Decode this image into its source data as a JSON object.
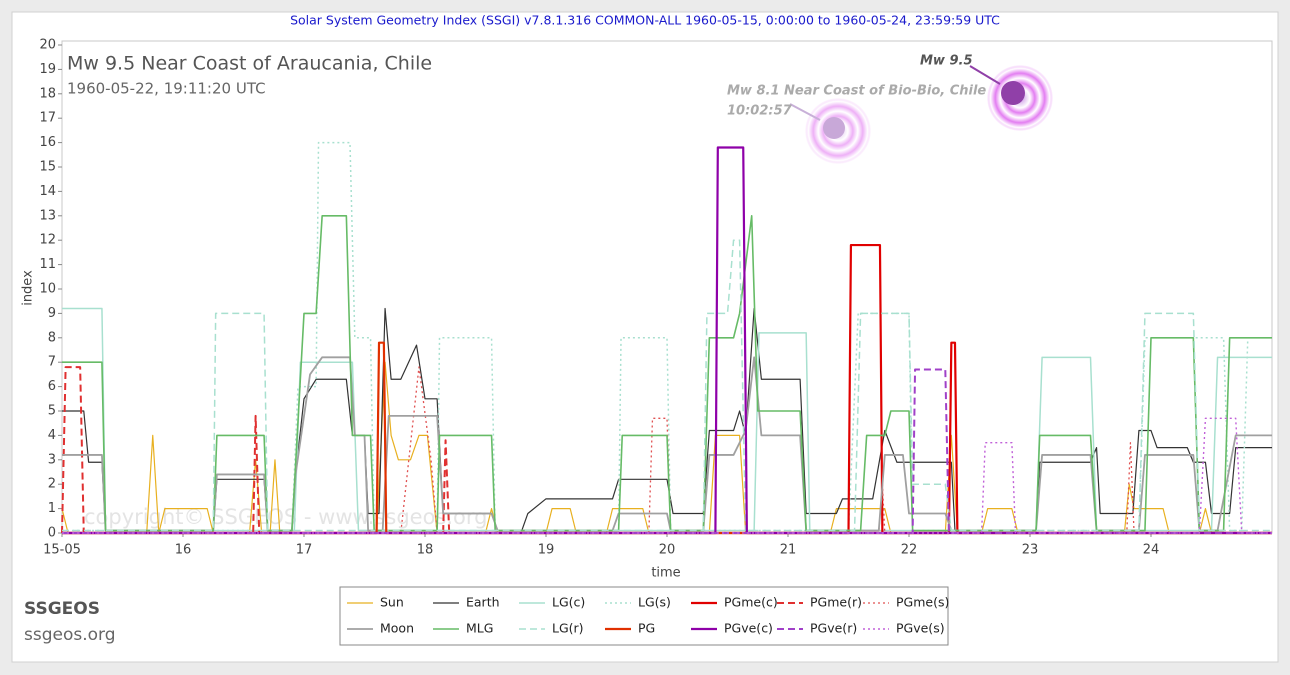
{
  "chart_data": {
    "type": "line",
    "title": "Solar System Geometry Index (SSGI) v7.8.1.316 COMMON-ALL 1960-05-15,  0:00:00 to 1960-05-24, 23:59:59 UTC",
    "event_title": "Mw 9.5 Near Coast of Araucania, Chile",
    "event_time": "1960-05-22, 19:11:20 UTC",
    "annotations": [
      "Mw 9.5",
      "Mw 8.1 Near Coast of Bio-Bio, Chile",
      "10:02:57"
    ],
    "watermark": "copyright© SSGEOS - www.ssgeos.org",
    "xlabel": "time",
    "ylabel": "index",
    "xlim": [
      15,
      25
    ],
    "xticks": [
      {
        "value": 15,
        "label": "15-05"
      },
      16,
      17,
      18,
      19,
      20,
      21,
      22,
      23,
      24
    ],
    "ylim": [
      0,
      20
    ],
    "yticks": [
      0,
      1,
      2,
      3,
      4,
      5,
      6,
      7,
      8,
      9,
      10,
      11,
      12,
      13,
      14,
      15,
      16,
      17,
      18,
      19,
      20
    ],
    "grid": false,
    "legend": "bottom",
    "series": [
      {
        "name": "Sun",
        "color": "#e8b020",
        "dash": "solid",
        "width": 1.2,
        "x": [
          15,
          15.05,
          15.7,
          15.75,
          15.8,
          15.85,
          16.2,
          16.25,
          16.55,
          16.6,
          16.65,
          16.72,
          16.76,
          16.8,
          17.6,
          17.67,
          17.72,
          17.78,
          17.88,
          17.95,
          18.02,
          18.1,
          18.5,
          18.55,
          18.6,
          19,
          19.05,
          19.2,
          19.25,
          19.5,
          19.55,
          19.8,
          19.85,
          20.35,
          20.4,
          20.6,
          20.65,
          21.35,
          21.4,
          21.8,
          21.85,
          22.3,
          22.35,
          22.4,
          22.6,
          22.65,
          22.85,
          22.9,
          23.78,
          23.82,
          23.86,
          24.1,
          24.15,
          24.4,
          24.45,
          24.5,
          25
        ],
        "values": [
          1,
          0,
          0,
          4,
          0,
          1,
          1,
          0,
          0,
          3,
          0,
          0,
          3,
          0,
          0,
          7,
          4,
          3,
          3,
          4,
          4,
          0,
          0,
          1,
          0,
          0,
          1,
          1,
          0,
          0,
          1,
          1,
          0,
          0,
          4,
          4,
          0,
          0,
          1,
          1,
          0,
          0,
          4,
          0,
          0,
          1,
          1,
          0,
          0,
          2,
          1,
          1,
          0,
          0,
          1,
          0,
          0
        ]
      },
      {
        "name": "Earth",
        "color": "#333333",
        "dash": "solid",
        "width": 1.2,
        "x": [
          15,
          15.18,
          15.22,
          15.33,
          15.36,
          16.25,
          16.28,
          16.67,
          16.7,
          16.9,
          16.93,
          17,
          17.1,
          17.35,
          17.4,
          17.5,
          17.53,
          17.62,
          17.67,
          17.72,
          17.8,
          17.93,
          18,
          18.1,
          18.15,
          18.55,
          18.6,
          18.8,
          18.85,
          19,
          19.55,
          19.6,
          20,
          20.05,
          20.3,
          20.35,
          20.55,
          20.6,
          20.65,
          20.72,
          20.78,
          21.1,
          21.15,
          21.4,
          21.45,
          21.7,
          21.8,
          21.9,
          22.35,
          22.38,
          23.05,
          23.08,
          23.5,
          23.55,
          23.58,
          23.85,
          23.9,
          24,
          24.05,
          24.3,
          24.35,
          24.45,
          24.5,
          24.65,
          24.7,
          25
        ],
        "values": [
          5,
          5,
          2.9,
          2.9,
          0.1,
          0.1,
          2.2,
          2.2,
          0.1,
          0.1,
          2.4,
          5.5,
          6.3,
          6.3,
          4,
          4,
          0.8,
          0.8,
          9.2,
          6.3,
          6.3,
          7.7,
          5.5,
          5.5,
          0.8,
          0.8,
          0.1,
          0.1,
          0.8,
          1.4,
          1.4,
          2.2,
          2.2,
          0.8,
          0.8,
          4.2,
          4.2,
          5,
          4,
          9.2,
          6.3,
          6.3,
          0.8,
          0.8,
          1.4,
          1.4,
          4.2,
          2.9,
          2.9,
          0.1,
          0.1,
          2.9,
          2.9,
          3.5,
          0.8,
          0.8,
          4.2,
          4.2,
          3.5,
          3.5,
          2.9,
          2.9,
          0.8,
          0.8,
          3.5,
          3.5
        ]
      },
      {
        "name": "LG(c)",
        "color": "#a8e0cf",
        "dash": "solid",
        "width": 1.5,
        "x": [
          15,
          15.33,
          15.36,
          16.92,
          16.97,
          17.4,
          17.45,
          20.72,
          20.76,
          21.15,
          21.18,
          23.05,
          23.1,
          23.5,
          23.55,
          24.5,
          24.55,
          25
        ],
        "values": [
          9.2,
          9.2,
          0.1,
          0.1,
          7,
          7,
          0.1,
          0.1,
          8.2,
          8.2,
          0.1,
          0.1,
          7.2,
          7.2,
          0.1,
          0.1,
          7.2,
          7.2
        ]
      },
      {
        "name": "LG(s)",
        "color": "#a8e0cf",
        "dash": "dotted",
        "width": 1.5,
        "x": [
          15,
          16.9,
          16.95,
          17.1,
          17.12,
          17.38,
          17.42,
          17.55,
          17.58,
          18.1,
          18.12,
          18.55,
          18.58,
          19.6,
          19.62,
          20,
          20.03,
          21.5,
          21.58,
          22,
          22.03,
          23.9,
          23.95,
          24.6,
          24.65,
          24.75,
          24.8,
          25
        ],
        "values": [
          0.1,
          0.1,
          6,
          6,
          16,
          16,
          8,
          8,
          0.1,
          0.1,
          8,
          8,
          0.1,
          0.1,
          8,
          8,
          0.1,
          0.1,
          9,
          9,
          0.1,
          0.1,
          8,
          8,
          0.1,
          0.1,
          8,
          8
        ]
      },
      {
        "name": "PGme(c)",
        "color": "#e00000",
        "dash": "solid",
        "width": 2.2,
        "x": [
          15,
          21.5,
          21.52,
          21.76,
          21.78,
          22.33,
          22.35,
          22.38,
          22.4,
          25
        ],
        "values": [
          0,
          0,
          11.8,
          11.8,
          0,
          0,
          7.8,
          7.8,
          0,
          0
        ]
      },
      {
        "name": "PGme(r)",
        "color": "#e03030",
        "dash": "dashed",
        "width": 2,
        "x": [
          15,
          15.03,
          15.15,
          15.18,
          16.58,
          16.6,
          16.63,
          18.15,
          18.17,
          18.2,
          25
        ],
        "values": [
          0,
          6.8,
          6.8,
          0,
          0,
          4.8,
          0,
          0,
          3.8,
          0,
          0
        ]
      },
      {
        "name": "PGme(s)",
        "color": "#e05050",
        "dash": "dotted",
        "width": 1.3,
        "x": [
          15,
          17.8,
          17.95,
          18.05,
          18.1,
          19.85,
          19.88,
          20,
          20.03,
          21.75,
          21.78,
          21.8,
          23.8,
          23.83,
          23.86,
          25
        ],
        "values": [
          0,
          0,
          6.8,
          3,
          0,
          0,
          4.7,
          4.7,
          0,
          0,
          2,
          0,
          0,
          3.7,
          0,
          0
        ]
      },
      {
        "name": "Moon",
        "color": "#a0a0a0",
        "dash": "solid",
        "width": 1.8,
        "x": [
          15,
          15.33,
          15.36,
          16.25,
          16.28,
          16.67,
          16.7,
          16.9,
          16.93,
          17.05,
          17.15,
          17.38,
          17.42,
          17.5,
          17.53,
          17.65,
          17.7,
          18.1,
          18.15,
          18.55,
          18.6,
          19.55,
          19.6,
          20,
          20.03,
          20.3,
          20.35,
          20.55,
          20.65,
          20.72,
          20.78,
          21.1,
          21.15,
          21.75,
          21.8,
          21.95,
          22,
          22.3,
          22.35,
          23.05,
          23.1,
          23.5,
          23.55,
          23.9,
          23.95,
          24.35,
          24.4,
          24.55,
          24.7,
          25
        ],
        "values": [
          3.2,
          3.2,
          0.1,
          0.1,
          2.4,
          2.4,
          0.1,
          0.1,
          2.4,
          6.5,
          7.2,
          7.2,
          4,
          4,
          0.1,
          0.1,
          4.8,
          4.8,
          0.8,
          0.8,
          0.1,
          0.1,
          0.8,
          0.8,
          0.1,
          0.1,
          3.2,
          3.2,
          4.2,
          7.2,
          4,
          4,
          0.1,
          0.1,
          3.2,
          3.2,
          0.8,
          0.8,
          0.1,
          0.1,
          3.2,
          3.2,
          0.1,
          0.1,
          3.2,
          3.2,
          0.1,
          0.1,
          4,
          4
        ]
      },
      {
        "name": "MLG",
        "color": "#66bb66",
        "dash": "solid",
        "width": 1.6,
        "x": [
          15,
          15.33,
          15.36,
          16.25,
          16.28,
          16.67,
          16.7,
          16.9,
          17,
          17.1,
          17.15,
          17.35,
          17.4,
          17.55,
          17.58,
          18.1,
          18.12,
          18.55,
          18.58,
          19.6,
          19.63,
          20,
          20.03,
          20.3,
          20.35,
          20.55,
          20.6,
          20.7,
          20.75,
          21.1,
          21.15,
          21.6,
          21.65,
          21.8,
          21.85,
          22,
          22.03,
          23.05,
          23.08,
          23.5,
          23.55,
          23.95,
          24,
          24.35,
          24.4,
          24.6,
          24.65,
          25
        ],
        "values": [
          7,
          7,
          0.1,
          0.1,
          4,
          4,
          0.1,
          0.1,
          9,
          9,
          13,
          13,
          4,
          4,
          0.1,
          0.1,
          4,
          4,
          0.1,
          0.1,
          4,
          4,
          0.1,
          0.1,
          8,
          8,
          9,
          13,
          5,
          5,
          0.1,
          0.1,
          4,
          4,
          5,
          5,
          0.1,
          0.1,
          4,
          4,
          0.1,
          0.1,
          8,
          8,
          0.1,
          0.1,
          8,
          8
        ]
      },
      {
        "name": "LG(r)",
        "color": "#a8e0cf",
        "dash": "dashed",
        "width": 1.5,
        "x": [
          15,
          16.25,
          16.27,
          16.67,
          16.7,
          20.3,
          20.33,
          20.5,
          20.55,
          20.6,
          20.65,
          21.55,
          21.6,
          22,
          22.03,
          22.3,
          22.35,
          23.9,
          23.95,
          24.35,
          24.4,
          25
        ],
        "values": [
          0.1,
          0.1,
          9,
          9,
          0.1,
          0.1,
          9,
          9,
          12,
          12,
          0.1,
          0.1,
          9,
          9,
          2,
          2,
          0.1,
          0.1,
          9,
          9,
          0.1,
          0.1
        ]
      },
      {
        "name": "PG",
        "color": "#e03000",
        "dash": "solid",
        "width": 2.2,
        "x": [
          15,
          17.6,
          17.62,
          17.66,
          17.68,
          25
        ],
        "values": [
          0,
          0,
          7.8,
          7.8,
          0,
          0
        ]
      },
      {
        "name": "PGve(c)",
        "color": "#8e00a8",
        "dash": "solid",
        "width": 2.2,
        "x": [
          15,
          20.4,
          20.42,
          20.63,
          20.66,
          25
        ],
        "values": [
          0,
          0,
          15.8,
          15.8,
          0,
          0
        ]
      },
      {
        "name": "PGve(r)",
        "color": "#a040c8",
        "dash": "dashed",
        "width": 2,
        "x": [
          15,
          22.03,
          22.05,
          22.3,
          22.33,
          25
        ],
        "values": [
          0,
          0,
          6.7,
          6.7,
          0,
          0
        ]
      },
      {
        "name": "PGve(s)",
        "color": "#c060d8",
        "dash": "dotted",
        "width": 1.4,
        "x": [
          15,
          22.6,
          22.63,
          22.85,
          22.88,
          24.4,
          24.45,
          24.7,
          24.75,
          25
        ],
        "values": [
          0,
          0,
          3.7,
          3.7,
          0,
          0,
          4.7,
          4.7,
          0,
          0
        ]
      }
    ]
  },
  "footer": {
    "brand": "SSGEOS",
    "url": "ssgeos.org"
  }
}
